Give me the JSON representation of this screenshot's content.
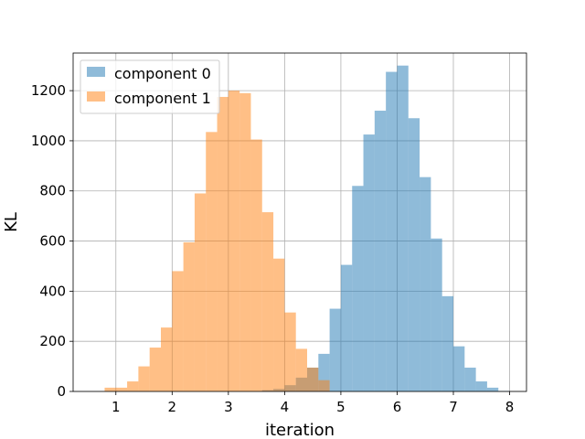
{
  "chart_data": {
    "type": "bar",
    "title": "",
    "xlabel": "iteration",
    "ylabel": "KL",
    "xlim": [
      0.24,
      8.3
    ],
    "ylim": [
      0,
      1350
    ],
    "xticks": [
      1,
      2,
      3,
      4,
      5,
      6,
      7,
      8
    ],
    "yticks": [
      0,
      200,
      400,
      600,
      800,
      1000,
      1200
    ],
    "grid": true,
    "legend_position": "top-left",
    "bin_width": 0.2,
    "series": [
      {
        "name": "component 0",
        "color": "#1f77b4",
        "opacity": 0.5,
        "bins_start": [
          3.6,
          3.8,
          4.0,
          4.2,
          4.4,
          4.6,
          4.8,
          5.0,
          5.2,
          5.4,
          5.6,
          5.8,
          6.0,
          6.2,
          6.4,
          6.6,
          6.8,
          7.0,
          7.2,
          7.4,
          7.6,
          7.8
        ],
        "values": [
          5,
          10,
          25,
          55,
          95,
          150,
          330,
          505,
          820,
          1025,
          1120,
          1275,
          1300,
          1090,
          855,
          610,
          380,
          180,
          95,
          40,
          15,
          2
        ]
      },
      {
        "name": "component 1",
        "color": "#ff7f0e",
        "opacity": 0.5,
        "bins_start": [
          0.8,
          1.0,
          1.2,
          1.4,
          1.6,
          1.8,
          2.0,
          2.2,
          2.4,
          2.6,
          2.8,
          3.0,
          3.2,
          3.4,
          3.6,
          3.8,
          4.0,
          4.2,
          4.4,
          4.6
        ],
        "values": [
          15,
          15,
          40,
          100,
          175,
          255,
          480,
          595,
          790,
          1035,
          1175,
          1200,
          1190,
          1005,
          715,
          530,
          315,
          170,
          95,
          45
        ]
      }
    ]
  }
}
